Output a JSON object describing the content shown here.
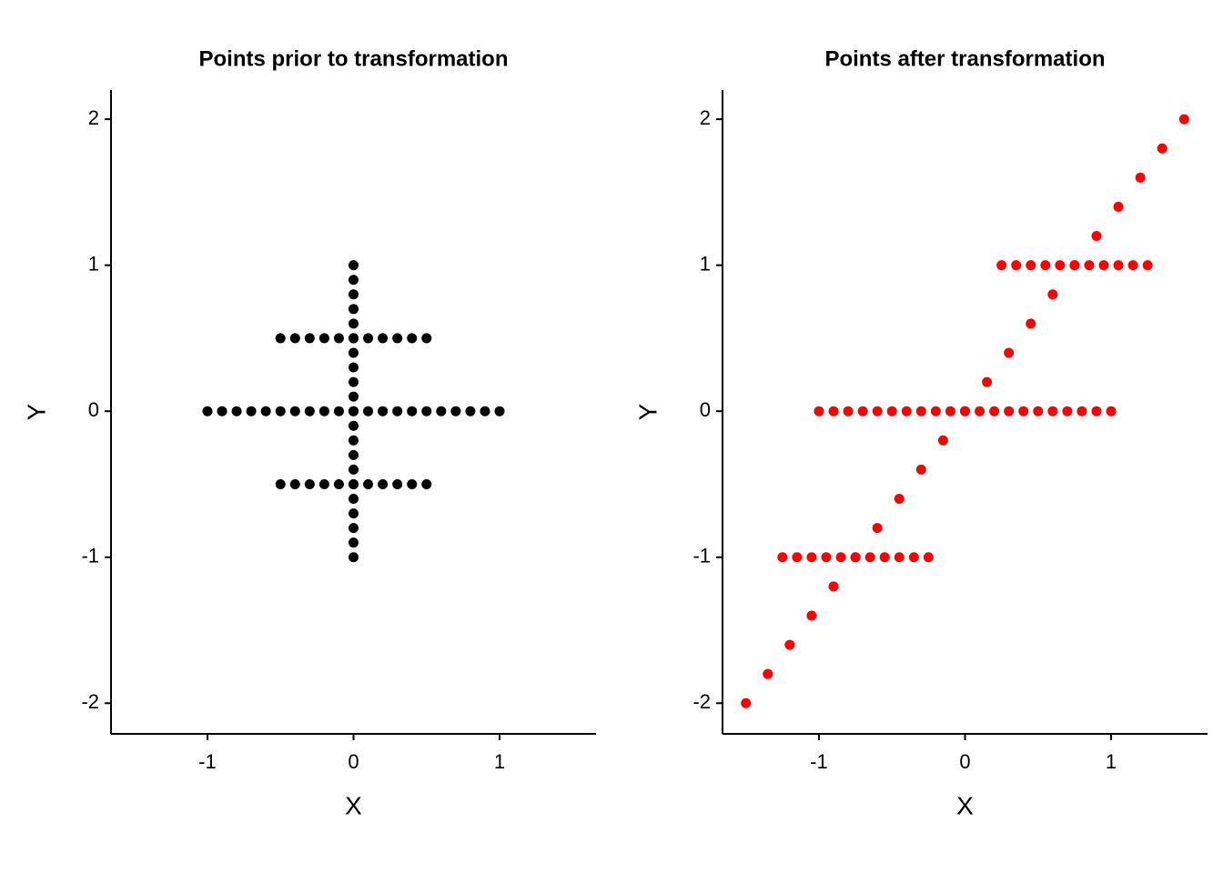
{
  "chart_data": [
    {
      "type": "scatter",
      "title": "Points prior to transformation",
      "x_label": "X",
      "y_label": "Y",
      "color": "#000000",
      "x": [
        0,
        0,
        0,
        0,
        0,
        0,
        0,
        0,
        0,
        0,
        0,
        0,
        0,
        0,
        0,
        0,
        0,
        0,
        0,
        0,
        0,
        -1,
        -0.9,
        -0.8,
        -0.7,
        -0.6,
        -0.5,
        -0.4,
        -0.3,
        -0.2,
        -0.1,
        0,
        0.1,
        0.2,
        0.3,
        0.4,
        0.5,
        0.6,
        0.7,
        0.8,
        0.9,
        1,
        -0.5,
        -0.4,
        -0.3,
        -0.2,
        -0.1,
        0,
        0.1,
        0.2,
        0.3,
        0.4,
        0.5,
        -0.5,
        -0.4,
        -0.3,
        -0.2,
        -0.1,
        0,
        0.1,
        0.2,
        0.3,
        0.4,
        0.5
      ],
      "values": [
        -1,
        -0.9,
        -0.8,
        -0.7,
        -0.6,
        -0.5,
        -0.4,
        -0.3,
        -0.2,
        -0.1,
        0,
        0.1,
        0.2,
        0.3,
        0.4,
        0.5,
        0.6,
        0.7,
        0.8,
        0.9,
        1,
        0,
        0,
        0,
        0,
        0,
        0,
        0,
        0,
        0,
        0,
        0,
        0,
        0,
        0,
        0,
        0,
        0,
        0,
        0,
        0,
        0,
        0.5,
        0.5,
        0.5,
        0.5,
        0.5,
        0.5,
        0.5,
        0.5,
        0.5,
        0.5,
        0.5,
        -0.5,
        -0.5,
        -0.5,
        -0.5,
        -0.5,
        -0.5,
        -0.5,
        -0.5,
        -0.5,
        -0.5,
        -0.5
      ],
      "xlim": [
        -1.66,
        1.66
      ],
      "ylim": [
        -2.21,
        2.2
      ],
      "xticks": [
        -1,
        0,
        1
      ],
      "yticks": [
        -2,
        -1,
        0,
        1,
        2
      ]
    },
    {
      "type": "scatter",
      "title": "Points after transformation",
      "x_label": "X",
      "y_label": "Y",
      "color": "#ff0000",
      "x": [
        -1.5,
        -1.35,
        -1.2,
        -1.05,
        -0.9,
        -0.75,
        -0.6,
        -0.45,
        -0.3,
        -0.15,
        0,
        0.15,
        0.3,
        0.45,
        0.6,
        0.75,
        0.9,
        1.05,
        1.2,
        1.35,
        1.5,
        -1,
        -0.9,
        -0.8,
        -0.7,
        -0.6,
        -0.5,
        -0.4,
        -0.3,
        -0.2,
        -0.1,
        0,
        0.1,
        0.2,
        0.3,
        0.4,
        0.5,
        0.6,
        0.7,
        0.8,
        0.9,
        1,
        0.25,
        0.35,
        0.45,
        0.55,
        0.65,
        0.75,
        0.85,
        0.95,
        1.05,
        1.15,
        1.25,
        -1.25,
        -1.15,
        -1.05,
        -0.95,
        -0.85,
        -0.75,
        -0.65,
        -0.55,
        -0.45,
        -0.35,
        -0.25
      ],
      "values": [
        -2,
        -1.8,
        -1.6,
        -1.4,
        -1.2,
        -1,
        -0.8,
        -0.6,
        -0.4,
        -0.2,
        0,
        0.2,
        0.4,
        0.6,
        0.8,
        1,
        1.2,
        1.4,
        1.6,
        1.8,
        2,
        0,
        0,
        0,
        0,
        0,
        0,
        0,
        0,
        0,
        0,
        0,
        0,
        0,
        0,
        0,
        0,
        0,
        0,
        0,
        0,
        0,
        1,
        1,
        1,
        1,
        1,
        1,
        1,
        1,
        1,
        1,
        1,
        -1,
        -1,
        -1,
        -1,
        -1,
        -1,
        -1,
        -1,
        -1,
        -1,
        -1
      ],
      "xlim": [
        -1.66,
        1.66
      ],
      "ylim": [
        -2.21,
        2.2
      ],
      "xticks": [
        -1,
        0,
        1
      ],
      "yticks": [
        -2,
        -1,
        0,
        1,
        2
      ]
    }
  ]
}
